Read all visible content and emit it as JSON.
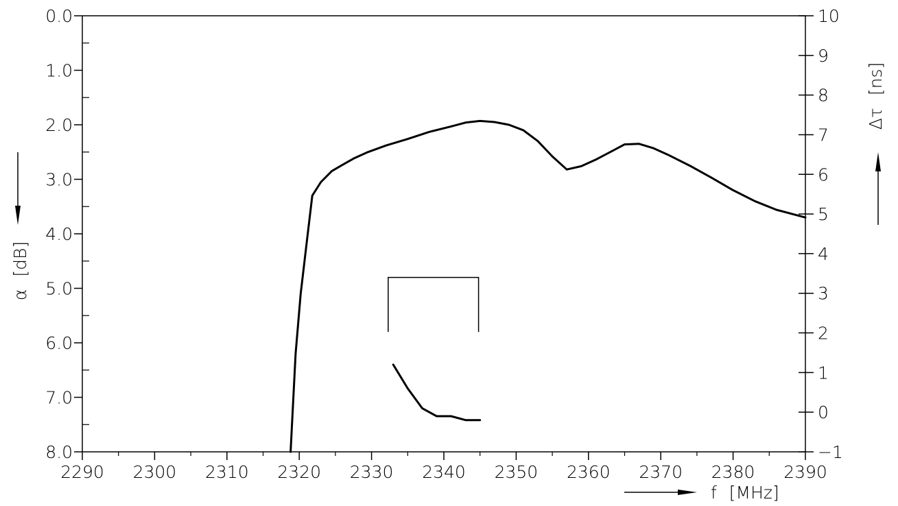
{
  "chart_data": {
    "type": "line",
    "title": "",
    "x_axis": {
      "label": "f",
      "unit": "[MHz]",
      "range": [
        2290,
        2390
      ],
      "ticks": [
        "2290",
        "2300",
        "2310",
        "2320",
        "2330",
        "2340",
        "2350",
        "2360",
        "2370",
        "2380",
        "2390"
      ]
    },
    "y_left": {
      "label": "α",
      "unit": "[dB]",
      "range": [
        0.0,
        8.0
      ],
      "inverted": true,
      "ticks": [
        "0.0",
        "1.0",
        "2.0",
        "3.0",
        "4.0",
        "5.0",
        "6.0",
        "7.0",
        "8.0"
      ]
    },
    "y_right": {
      "label": "Δτ",
      "unit": "[ns]",
      "range": [
        -1,
        10
      ],
      "ticks": [
        "−1",
        "0",
        "1",
        "2",
        "3",
        "4",
        "5",
        "6",
        "7",
        "8",
        "9",
        "10"
      ]
    },
    "series": [
      {
        "axis": "left",
        "x": [
          2318.8,
          2319.5,
          2320.2,
          2321.0,
          2321.8,
          2323.0,
          2324.5,
          2325.8,
          2327.5,
          2329.5,
          2332.0,
          2335.0,
          2338.0,
          2341.0,
          2343.0,
          2345.0,
          2347.0,
          2349.0,
          2351.0,
          2353.0,
          2355.0,
          2357.0,
          2359.0,
          2361.0,
          2363.0,
          2365.0,
          2367.0,
          2369.0,
          2371.0,
          2374.0,
          2377.0,
          2380.0,
          2383.0,
          2386.0,
          2390.0
        ],
        "y": [
          8.0,
          6.2,
          5.1,
          4.2,
          3.3,
          3.05,
          2.85,
          2.75,
          2.62,
          2.5,
          2.38,
          2.26,
          2.13,
          2.03,
          1.96,
          1.93,
          1.95,
          2.0,
          2.1,
          2.3,
          2.58,
          2.82,
          2.76,
          2.64,
          2.5,
          2.36,
          2.35,
          2.43,
          2.55,
          2.75,
          2.97,
          3.2,
          3.4,
          3.56,
          3.7
        ]
      },
      {
        "axis": "right",
        "x": [
          2333.0,
          2335.0,
          2337.0,
          2339.0,
          2341.0,
          2343.0,
          2345.0
        ],
        "y": [
          1.2,
          0.6,
          0.1,
          -0.1,
          -0.1,
          -0.2,
          -0.2
        ]
      }
    ],
    "annotation": {
      "shape": "bracket",
      "x": [
        2332.3,
        2344.8
      ],
      "y_left": [
        4.8,
        5.8
      ]
    },
    "grid": false
  }
}
